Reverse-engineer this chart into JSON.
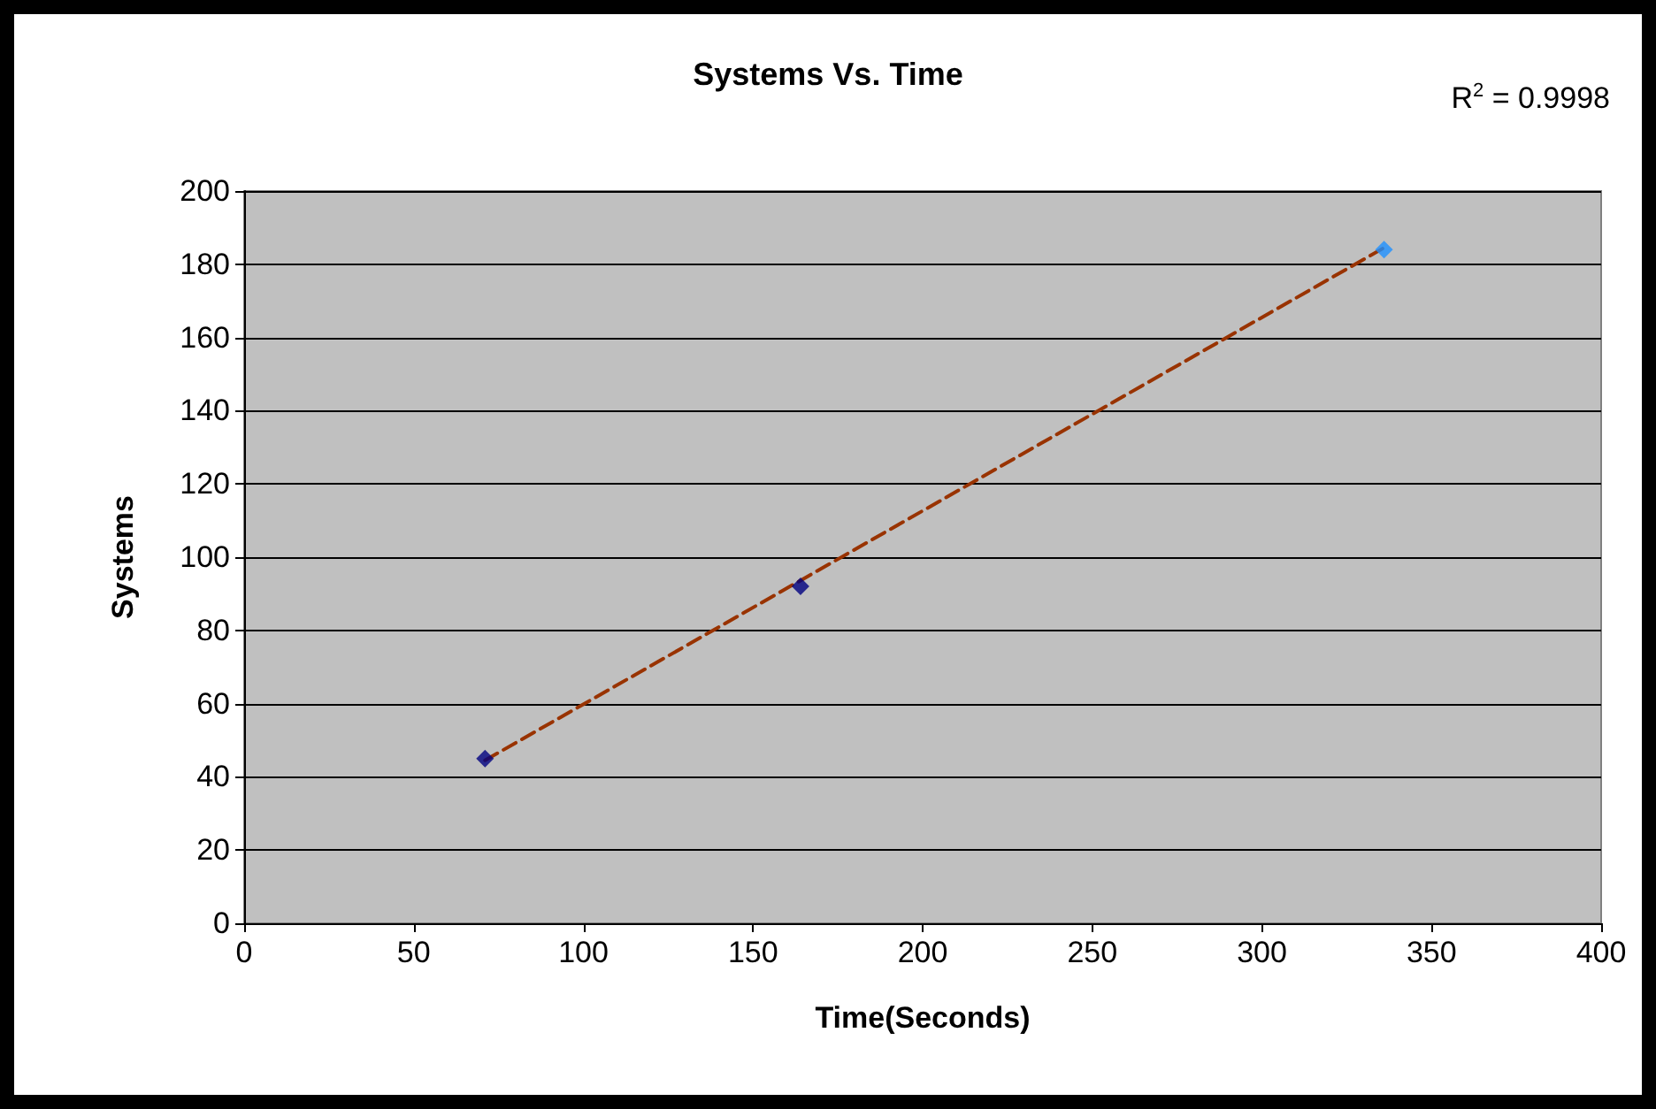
{
  "chart_data": {
    "type": "scatter",
    "title": "Systems Vs. Time",
    "xlabel": "Time(Seconds)",
    "ylabel": "Systems",
    "annotations": [
      "R$^{2}$ = 0.9998"
    ],
    "series": [
      {
        "x": [
          71,
          164,
          336
        ],
        "values": [
          45,
          92,
          184
        ],
        "colors": [
          "#000080",
          "#000080",
          "#1e90ff"
        ],
        "marker": "diamond"
      },
      {
        "type": "line",
        "x": [
          71,
          336
        ],
        "values": [
          44.5,
          184.5
        ],
        "color": "#993300",
        "line_style": "dashed",
        "marker": "none"
      }
    ],
    "xlim": [
      0,
      400
    ],
    "xticks": [
      0,
      50,
      100,
      150,
      200,
      250,
      300,
      350,
      400
    ],
    "ylim": [
      0,
      200
    ],
    "yticks": [
      0,
      20,
      40,
      60,
      80,
      100,
      120,
      140,
      160,
      180,
      200
    ],
    "grid": "y"
  }
}
